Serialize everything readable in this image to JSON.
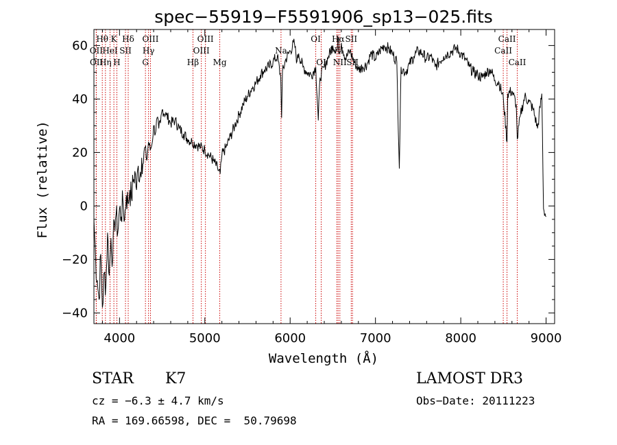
{
  "chart_data": {
    "type": "line",
    "title": "spec−55919−F5591906_sp13−025.fits",
    "xlabel": "Wavelength (Å)",
    "ylabel": "Flux (relative)",
    "xlim": [
      3700,
      9100
    ],
    "ylim": [
      -44,
      66
    ],
    "xticks": [
      4000,
      5000,
      6000,
      7000,
      8000,
      9000
    ],
    "xtick_labels": [
      "4000",
      "5000",
      "6000",
      "7000",
      "8000",
      "9000"
    ],
    "yticks": [
      -40,
      -20,
      0,
      20,
      40,
      60
    ],
    "ytick_labels": [
      "−40",
      "−20",
      "0",
      "20",
      "40",
      "60"
    ],
    "series": [
      {
        "name": "spectrum",
        "x": [
          3700,
          3720,
          3740,
          3760,
          3780,
          3800,
          3820,
          3840,
          3860,
          3880,
          3900,
          3920,
          3940,
          3960,
          3980,
          4000,
          4020,
          4040,
          4060,
          4080,
          4100,
          4120,
          4140,
          4160,
          4180,
          4200,
          4220,
          4240,
          4260,
          4280,
          4300,
          4320,
          4340,
          4360,
          4380,
          4400,
          4420,
          4440,
          4460,
          4480,
          4500,
          4550,
          4600,
          4650,
          4700,
          4750,
          4800,
          4850,
          4900,
          4950,
          5000,
          5050,
          5100,
          5150,
          5180,
          5200,
          5250,
          5300,
          5350,
          5400,
          5450,
          5500,
          5550,
          5600,
          5650,
          5700,
          5750,
          5800,
          5850,
          5890,
          5900,
          5910,
          5950,
          6000,
          6050,
          6080,
          6100,
          6150,
          6200,
          6250,
          6300,
          6330,
          6350,
          6400,
          6450,
          6500,
          6550,
          6563,
          6580,
          6600,
          6650,
          6700,
          6750,
          6800,
          6850,
          6900,
          6950,
          7000,
          7050,
          7100,
          7150,
          7200,
          7250,
          7280,
          7300,
          7350,
          7400,
          7450,
          7500,
          7550,
          7600,
          7650,
          7700,
          7750,
          7800,
          7850,
          7900,
          7950,
          8000,
          8050,
          8100,
          8150,
          8200,
          8250,
          8300,
          8350,
          8400,
          8450,
          8500,
          8542,
          8550,
          8600,
          8650,
          8662,
          8700,
          8750,
          8800,
          8850,
          8900,
          8950,
          8970,
          9000
        ],
        "values": [
          -5,
          -20,
          -28,
          -35,
          -18,
          -38,
          -25,
          -30,
          -10,
          -26,
          -12,
          -20,
          -6,
          -3,
          -10,
          -1,
          -4,
          2,
          -5,
          4,
          1,
          6,
          3,
          9,
          13,
          6,
          15,
          11,
          18,
          16,
          22,
          17,
          24,
          21,
          23,
          30,
          27,
          33,
          29,
          31,
          36,
          34,
          31,
          32,
          29,
          27,
          25,
          24,
          23,
          22,
          21,
          19,
          17,
          14,
          12,
          19,
          22,
          26,
          30,
          34,
          38,
          41,
          44,
          46,
          49,
          51,
          52,
          54,
          56,
          48,
          33,
          50,
          55,
          58,
          61,
          54,
          57,
          52,
          50,
          49,
          52,
          32,
          48,
          52,
          56,
          60,
          58,
          63,
          57,
          61,
          55,
          58,
          54,
          51,
          52,
          53,
          57,
          55,
          58,
          60,
          59,
          57,
          54,
          14,
          52,
          50,
          53,
          56,
          58,
          57,
          55,
          56,
          52,
          54,
          56,
          57,
          58,
          59,
          57,
          55,
          52,
          50,
          49,
          48,
          50,
          51,
          47,
          46,
          40,
          24,
          42,
          43,
          38,
          25,
          34,
          41,
          39,
          36,
          29,
          42,
          -1,
          -4
        ]
      }
    ],
    "line_markers": [
      {
        "name": "Hθ",
        "wavelength": 3798,
        "row": 0
      },
      {
        "name": "OII",
        "wavelength": 3727,
        "row": 1
      },
      {
        "name": "OII",
        "wavelength": 3729,
        "row": 2
      },
      {
        "name": "K",
        "wavelength": 3934,
        "row": 0
      },
      {
        "name": "Hη",
        "wavelength": 3835,
        "row": 2
      },
      {
        "name": "HeI",
        "wavelength": 3889,
        "row": 1
      },
      {
        "name": "H",
        "wavelength": 3969,
        "row": 2
      },
      {
        "name": "Hδ",
        "wavelength": 4102,
        "row": 0
      },
      {
        "name": "SII",
        "wavelength": 4070,
        "row": 1
      },
      {
        "name": "OIII",
        "wavelength": 4363,
        "row": 0
      },
      {
        "name": "Hγ",
        "wavelength": 4340,
        "row": 1
      },
      {
        "name": "G",
        "wavelength": 4304,
        "row": 2
      },
      {
        "name": "Hβ",
        "wavelength": 4861,
        "row": 2
      },
      {
        "name": "OIII",
        "wavelength": 5007,
        "row": 0
      },
      {
        "name": "OIII",
        "wavelength": 4959,
        "row": 1
      },
      {
        "name": "Mg",
        "wavelength": 5175,
        "row": 2
      },
      {
        "name": "Na",
        "wavelength": 5893,
        "row": 1
      },
      {
        "name": "OI",
        "wavelength": 6300,
        "row": 0
      },
      {
        "name": "OI",
        "wavelength": 6364,
        "row": 2
      },
      {
        "name": "Hα",
        "wavelength": 6563,
        "row": 0
      },
      {
        "name": "SII",
        "wavelength": 6716,
        "row": 0
      },
      {
        "name": "NII",
        "wavelength": 6548,
        "row": 1
      },
      {
        "name": "NII",
        "wavelength": 6583,
        "row": 2
      },
      {
        "name": "SII",
        "wavelength": 6731,
        "row": 2
      },
      {
        "name": "CaII",
        "wavelength": 8542,
        "row": 0
      },
      {
        "name": "CaII",
        "wavelength": 8498,
        "row": 1
      },
      {
        "name": "CaII",
        "wavelength": 8662,
        "row": 2
      }
    ],
    "marker_color": "#cc0000",
    "line_color": "#000000"
  },
  "footer": {
    "object_class": "STAR",
    "subclass": "K7",
    "survey": "LAMOST DR3",
    "redshift": "cz = −6.3 ± 4.7 km/s",
    "obs_date": "Obs−Date: 20111223",
    "coords": "RA = 169.66598, DEC =  50.79698"
  }
}
